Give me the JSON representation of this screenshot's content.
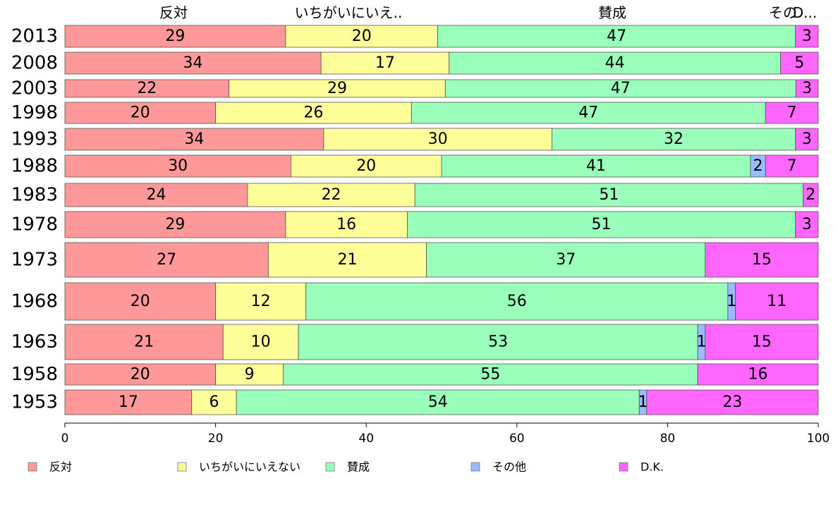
{
  "chart_data": {
    "type": "bar",
    "orientation": "horizontal",
    "stacked": true,
    "variable_width": true,
    "categories": [
      "2013",
      "2008",
      "2003",
      "1998",
      "1993",
      "1988",
      "1983",
      "1978",
      "1973",
      "1968",
      "1963",
      "1958",
      "1953"
    ],
    "series": [
      {
        "name": "反対",
        "color": "#ff9999",
        "values": [
          29,
          34,
          22,
          20,
          34,
          30,
          24,
          29,
          27,
          20,
          21,
          20,
          17
        ]
      },
      {
        "name": "いちがいにいえない",
        "color": "#ffff99",
        "values": [
          20,
          17,
          29,
          26,
          30,
          20,
          22,
          16,
          21,
          12,
          10,
          9,
          6
        ]
      },
      {
        "name": "賛成",
        "color": "#99ffbb",
        "values": [
          47,
          44,
          47,
          47,
          32,
          41,
          51,
          51,
          37,
          56,
          53,
          55,
          54
        ]
      },
      {
        "name": "その他",
        "color": "#99bbff",
        "values": [
          0,
          0,
          0,
          0,
          0,
          2,
          0,
          0,
          0,
          1,
          1,
          0,
          1
        ]
      },
      {
        "name": "D.K.",
        "color": "#ff66ff",
        "values": [
          3,
          5,
          3,
          7,
          3,
          7,
          2,
          3,
          15,
          11,
          15,
          16,
          23
        ]
      }
    ],
    "top_labels": [
      "反対",
      "いちがいにいえ..",
      "賛成",
      "その",
      "D..."
    ],
    "xlim": [
      0,
      100
    ],
    "xticks": [
      "0",
      "20",
      "40",
      "60",
      "80",
      "100"
    ],
    "legend_position": "bottom",
    "grid": false
  }
}
